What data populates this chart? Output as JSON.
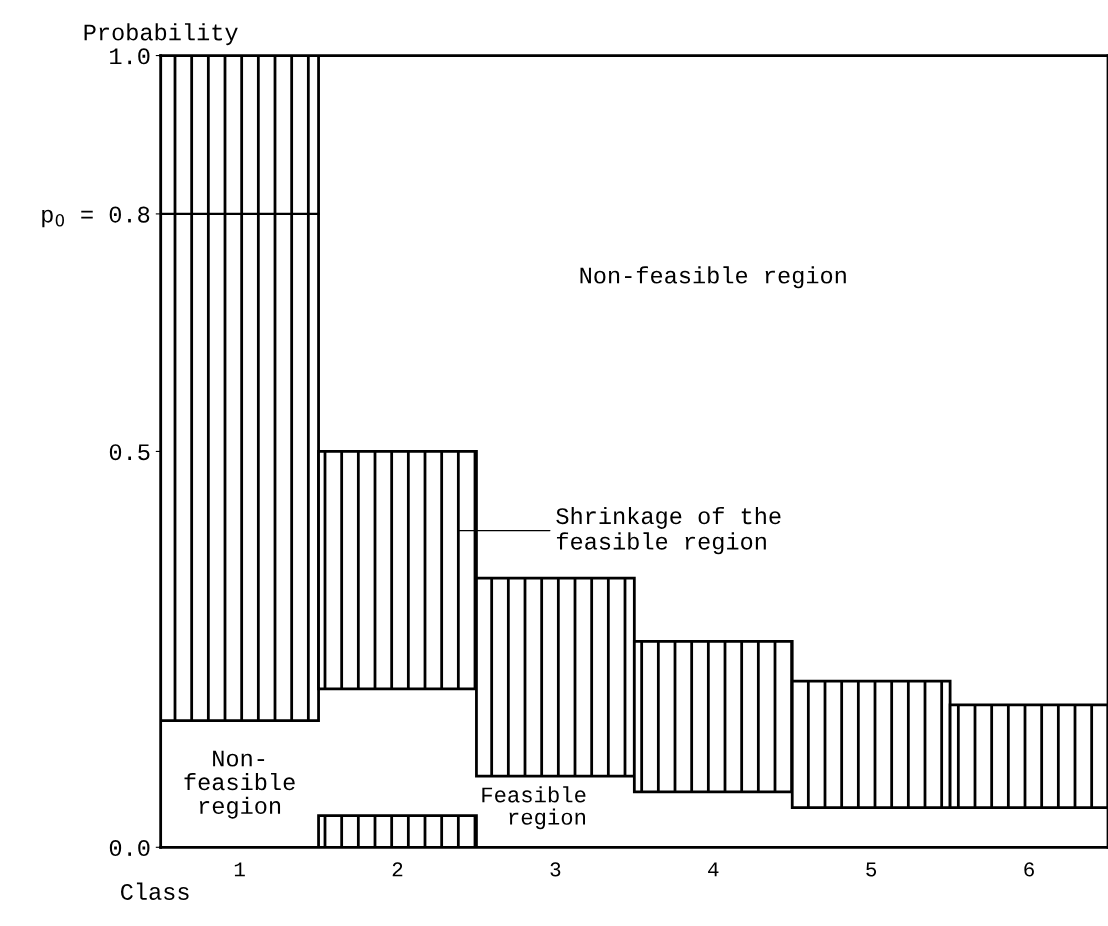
{
  "chart_data": {
    "type": "bar",
    "ylabel": "Probability",
    "xlabel": "Class",
    "categories": [
      "1",
      "2",
      "3",
      "4",
      "5",
      "6"
    ],
    "series": [
      {
        "color": "#000000",
        "base": [
          null,
          0,
          null,
          null,
          null,
          null
        ],
        "values": [
          null,
          0.04,
          null,
          null,
          null,
          null
        ]
      },
      {
        "color": "#000000",
        "base": [
          0.16,
          0.2,
          0.09,
          0.07,
          0.05,
          0.05
        ],
        "values": [
          0.84,
          0.3,
          0.25,
          0.19,
          0.16,
          0.13
        ]
      }
    ],
    "ylim": [
      0,
      1.0
    ],
    "yticks": [
      {
        "value": 0.0,
        "label": "0.0"
      },
      {
        "value": 0.5,
        "label": "0.5"
      },
      {
        "value": 1.0,
        "label": "1.0"
      },
      {
        "value": 0.8,
        "label": "p$_{0}$ = 0.8"
      }
    ],
    "ref_lines": [
      {
        "axis": "y",
        "value": 0.8,
        "label": null
      }
    ],
    "annotations": [
      "Non-feasible region",
      "Shrinkage of the\nfeasible region",
      "Non-\nfeasible\nregion",
      "Feasible\nregion"
    ],
    "grid": false
  }
}
